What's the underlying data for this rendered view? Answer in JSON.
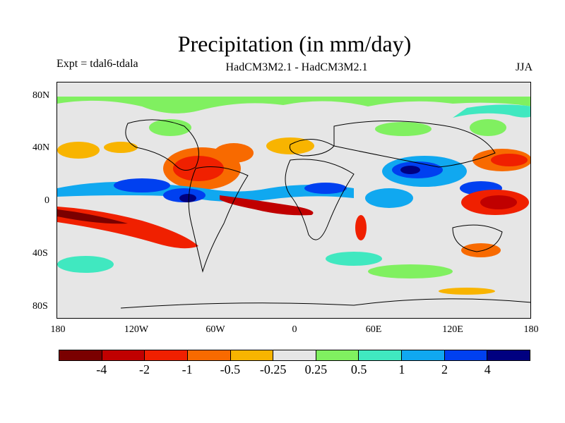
{
  "title": "Precipitation (in mm/day)",
  "expt_label": "Expt = tdal6-tdala",
  "model_label": "HadCM3M2.1 - HadCM3M2.1",
  "season_label": "JJA",
  "y_ticks": [
    "80N",
    "40N",
    "0",
    "40S",
    "80S"
  ],
  "x_ticks": [
    "180",
    "120W",
    "60W",
    "0",
    "60E",
    "120E",
    "180"
  ],
  "colorbar": {
    "colors": [
      "#7a0000",
      "#c00000",
      "#f02000",
      "#f86a00",
      "#f8b400",
      "#e6e6e6",
      "#80f060",
      "#40e8c0",
      "#10a8f0",
      "#0040f0",
      "#000080"
    ],
    "labels": [
      "-4",
      "-2",
      "-1",
      "-0.5",
      "-0.25",
      "0.25",
      "0.5",
      "1",
      "2",
      "4"
    ]
  },
  "colors": {
    "ocean_background": "#e6e6e6",
    "coastline": "#000000"
  }
}
